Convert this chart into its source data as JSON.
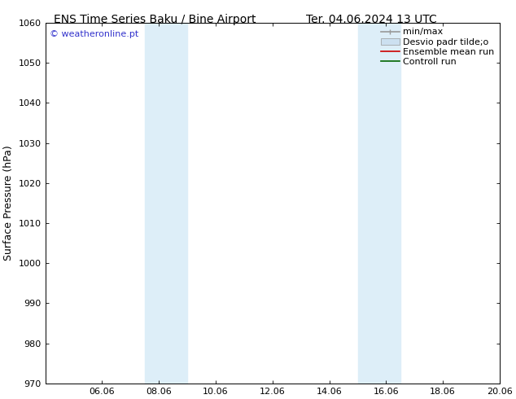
{
  "title_left": "ENS Time Series Baku / Bine Airport",
  "title_right": "Ter. 04.06.2024 13 UTC",
  "ylabel": "Surface Pressure (hPa)",
  "ylim": [
    970,
    1060
  ],
  "yticks": [
    970,
    980,
    990,
    1000,
    1010,
    1020,
    1030,
    1040,
    1050,
    1060
  ],
  "xtick_labels": [
    "06.06",
    "08.06",
    "10.06",
    "12.06",
    "14.06",
    "16.06",
    "18.06",
    "20.06"
  ],
  "xtick_positions": [
    2,
    4,
    6,
    8,
    10,
    12,
    14,
    16
  ],
  "xlim": [
    0,
    16
  ],
  "shaded_bands": [
    {
      "x_start": 3.5,
      "x_end": 5.0,
      "color": "#ddeef8"
    },
    {
      "x_start": 11.0,
      "x_end": 12.5,
      "color": "#ddeef8"
    }
  ],
  "watermark": "© weatheronline.pt",
  "watermark_color": "#3333cc",
  "background_color": "#ffffff",
  "legend_minmax_color": "#999999",
  "legend_desvio_color": "#cce0f0",
  "legend_ens_color": "#cc0000",
  "legend_ctrl_color": "#006600",
  "title_fontsize": 10,
  "tick_fontsize": 8,
  "ylabel_fontsize": 9,
  "legend_fontsize": 8
}
